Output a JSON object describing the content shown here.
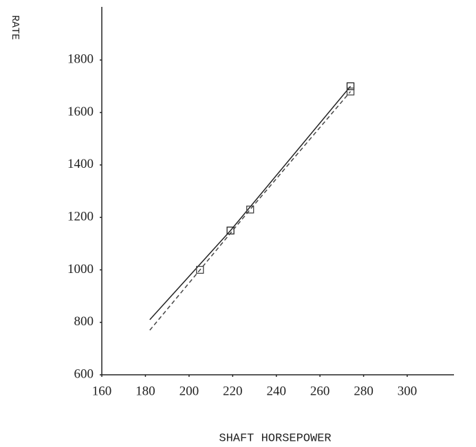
{
  "chart_data": {
    "type": "line",
    "x_label": "SHAFT HORSEPOWER",
    "y_label": "RATE",
    "xlim": [
      160,
      300
    ],
    "xticks": [
      160,
      180,
      200,
      220,
      240,
      260,
      280,
      300
    ],
    "ylim": [
      600,
      2000
    ],
    "yticks": [
      600,
      800,
      1000,
      1200,
      1400,
      1600,
      1800
    ],
    "grid": false,
    "series": [
      {
        "color": "#222222",
        "dash": false,
        "x": [
          182,
          219,
          274
        ],
        "values": [
          810,
          1150,
          1700
        ]
      },
      {
        "color": "#444444",
        "dash": true,
        "x": [
          182,
          205,
          228,
          274
        ],
        "values": [
          770,
          1000,
          1230,
          1680
        ]
      }
    ]
  }
}
